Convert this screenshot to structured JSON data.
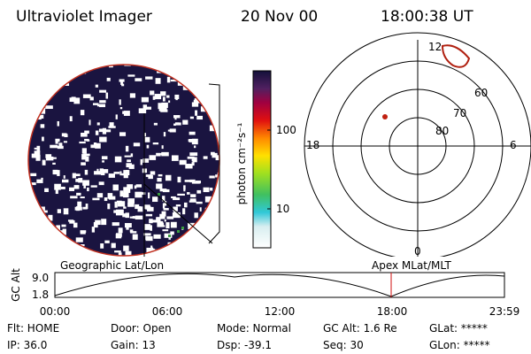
{
  "header": {
    "title": "Ultraviolet Imager",
    "date": "20 Nov 00",
    "time": "18:00:38 UT"
  },
  "colorbar": {
    "label": "photon cm⁻²s⁻¹",
    "ticks": [
      "100",
      "10"
    ]
  },
  "polar": {
    "clock_labels": [
      "12",
      "18",
      "6",
      "0"
    ],
    "lat_labels": [
      "60",
      "70",
      "80"
    ]
  },
  "timeline": {
    "left_title": "Geographic Lat/Lon",
    "right_title": "Apex MLat/MLT",
    "y_label": "GC Alt",
    "y_ticks": [
      "9.0",
      "1.8"
    ],
    "x_ticks": [
      "00:00",
      "06:00",
      "12:00",
      "18:00",
      "23:59"
    ]
  },
  "status": [
    [
      "Flt: HOME",
      "Door: Open",
      "Mode: Normal",
      "GC Alt: 1.6 Re",
      "GLat: *****"
    ],
    [
      "IP: 36.0",
      "Gain: 13",
      "Dsp: -39.1",
      "Seq: 30",
      "GLon: *****"
    ]
  ]
}
